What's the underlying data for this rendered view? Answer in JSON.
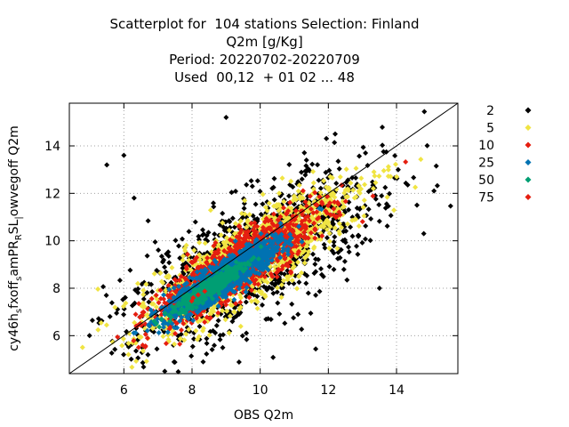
{
  "chart_data": {
    "type": "scatter",
    "title_lines": [
      "Scatterplot for  104 stations Selection: Finland",
      "Q2m [g/Kg]",
      "Period: 20220702-20220709",
      "Used  00,12  + 01 02 ... 48"
    ],
    "xlabel": "OBS Q2m",
    "ylabel": "cy46h_s fxoff_s amPR_R SL_l owvegoff Q2m",
    "ylabel_parts": [
      "cy46h",
      "s",
      "fxoff",
      "s",
      "amPR",
      "R",
      "SL",
      "|",
      "owvegoff Q2m"
    ],
    "xlim": [
      4.4,
      15.8
    ],
    "ylim": [
      4.4,
      15.8
    ],
    "xticks": [
      6,
      8,
      10,
      12,
      14
    ],
    "yticks": [
      6,
      8,
      10,
      12,
      14
    ],
    "grid": true,
    "diagonal_line": true,
    "legend_position": "right",
    "legend": [
      {
        "label": "2",
        "color": "#000000"
      },
      {
        "label": "5",
        "color": "#f0e442"
      },
      {
        "label": "10",
        "color": "#e51e10"
      },
      {
        "label": "25",
        "color": "#0072b2"
      },
      {
        "label": "50",
        "color": "#009e73"
      },
      {
        "label": "75",
        "color": "#e51e10"
      }
    ],
    "point_clouds": [
      {
        "level": "2",
        "color": "#000000",
        "center": [
          9.8,
          9.3
        ],
        "spread_along": 2.5,
        "spread_across": 1.0,
        "count": 1100
      },
      {
        "level": "5",
        "color": "#f0e442",
        "center": [
          9.6,
          9.2
        ],
        "spread_along": 2.0,
        "spread_across": 0.62,
        "count": 1400
      },
      {
        "level": "10",
        "color": "#e51e10",
        "center": [
          9.3,
          8.9
        ],
        "spread_along": 1.55,
        "spread_across": 0.42,
        "count": 1300
      },
      {
        "level": "25",
        "color": "#0072b2",
        "center": [
          8.9,
          8.4
        ],
        "spread_along": 1.15,
        "spread_across": 0.26,
        "count": 1200
      },
      {
        "level": "50",
        "color": "#009e73",
        "center": [
          8.5,
          8.0
        ],
        "spread_along": 0.7,
        "spread_across": 0.13,
        "count": 500
      },
      {
        "level": "75",
        "color": "#e51e10",
        "center": [
          8.1,
          7.6
        ],
        "spread_along": 0.15,
        "spread_across": 0.05,
        "count": 4
      }
    ],
    "outliers": [
      [
        6.0,
        13.6
      ],
      [
        9.0,
        15.2
      ],
      [
        5.5,
        13.2
      ],
      [
        14.6,
        11.5
      ],
      [
        13.5,
        8.0
      ],
      [
        7.2,
        4.5
      ],
      [
        12.2,
        14.5
      ],
      [
        14.8,
        10.3
      ],
      [
        6.3,
        11.8
      ],
      [
        15.1,
        12.1
      ]
    ]
  }
}
